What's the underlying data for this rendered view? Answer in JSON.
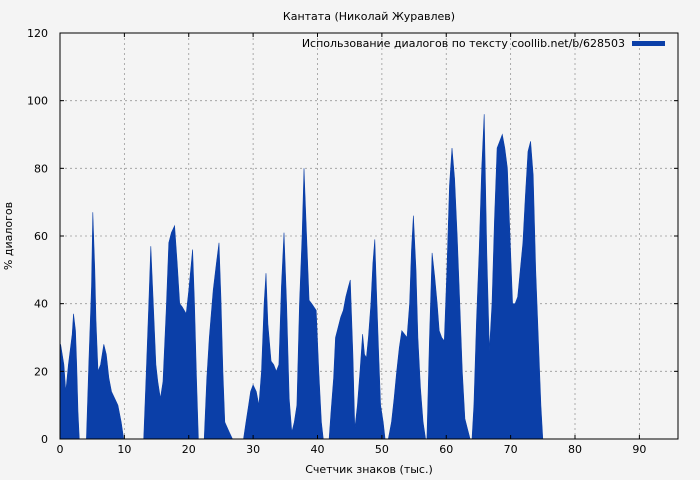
{
  "chart_data": {
    "type": "area",
    "title": "Кантата (Николай Журавлев)",
    "xlabel": "Счетчик знаков (тыс.)",
    "ylabel": "% диалогов",
    "xlim": [
      0,
      96
    ],
    "ylim": [
      0,
      120
    ],
    "xticks": [
      "0",
      "10",
      "20",
      "30",
      "40",
      "50",
      "60",
      "70",
      "80",
      "90"
    ],
    "yticks": [
      "0",
      "20",
      "40",
      "60",
      "80",
      "100",
      "120"
    ],
    "grid": true,
    "legend_position": "top-right",
    "colors": {
      "series": "#0b3fa8",
      "background": "#f4f4f4",
      "grid": "#999999"
    },
    "series": [
      {
        "name": "Использование диалогов по тексту coollib.net/b/628503",
        "points": [
          [
            0.0,
            0
          ],
          [
            0.1,
            28
          ],
          [
            0.6,
            22
          ],
          [
            0.9,
            14
          ],
          [
            1.3,
            22
          ],
          [
            1.9,
            31
          ],
          [
            2.1,
            37
          ],
          [
            2.4,
            32
          ],
          [
            2.6,
            22
          ],
          [
            2.8,
            8
          ],
          [
            3.0,
            0
          ],
          [
            4.1,
            0
          ],
          [
            4.5,
            24
          ],
          [
            4.9,
            45
          ],
          [
            5.1,
            67
          ],
          [
            5.4,
            50
          ],
          [
            5.6,
            35
          ],
          [
            5.9,
            20
          ],
          [
            6.3,
            22
          ],
          [
            6.8,
            28
          ],
          [
            7.2,
            25
          ],
          [
            7.6,
            18
          ],
          [
            8.0,
            14
          ],
          [
            8.5,
            12
          ],
          [
            9.0,
            10
          ],
          [
            9.5,
            5
          ],
          [
            9.9,
            0
          ],
          [
            13.0,
            0
          ],
          [
            13.4,
            20
          ],
          [
            13.8,
            40
          ],
          [
            14.1,
            57
          ],
          [
            14.5,
            40
          ],
          [
            14.9,
            22
          ],
          [
            15.2,
            17
          ],
          [
            15.6,
            12
          ],
          [
            16.0,
            17
          ],
          [
            16.5,
            38
          ],
          [
            16.9,
            58
          ],
          [
            17.3,
            61
          ],
          [
            17.8,
            63
          ],
          [
            18.2,
            52
          ],
          [
            18.6,
            40
          ],
          [
            19.0,
            39
          ],
          [
            19.6,
            37
          ],
          [
            20.0,
            44
          ],
          [
            20.6,
            56
          ],
          [
            20.9,
            40
          ],
          [
            21.2,
            18
          ],
          [
            21.5,
            0
          ],
          [
            22.4,
            0
          ],
          [
            22.8,
            18
          ],
          [
            23.2,
            30
          ],
          [
            23.8,
            44
          ],
          [
            24.3,
            52
          ],
          [
            24.7,
            58
          ],
          [
            25.0,
            42
          ],
          [
            25.3,
            20
          ],
          [
            25.6,
            5
          ],
          [
            26.3,
            2
          ],
          [
            26.8,
            0
          ],
          [
            28.5,
            0
          ],
          [
            28.9,
            5
          ],
          [
            29.3,
            10
          ],
          [
            29.6,
            14
          ],
          [
            30.0,
            16
          ],
          [
            30.5,
            14
          ],
          [
            30.9,
            10
          ],
          [
            31.3,
            20
          ],
          [
            31.7,
            40
          ],
          [
            32.0,
            49
          ],
          [
            32.3,
            34
          ],
          [
            32.8,
            23
          ],
          [
            33.2,
            22
          ],
          [
            33.6,
            20
          ],
          [
            34.0,
            22
          ],
          [
            34.4,
            45
          ],
          [
            34.8,
            61
          ],
          [
            35.2,
            40
          ],
          [
            35.6,
            12
          ],
          [
            36.0,
            2
          ],
          [
            36.4,
            5
          ],
          [
            36.8,
            10
          ],
          [
            37.2,
            40
          ],
          [
            37.6,
            60
          ],
          [
            37.9,
            80
          ],
          [
            38.3,
            60
          ],
          [
            38.7,
            41
          ],
          [
            39.1,
            40
          ],
          [
            39.8,
            38
          ],
          [
            40.2,
            20
          ],
          [
            40.6,
            5
          ],
          [
            40.9,
            0
          ],
          [
            41.8,
            0
          ],
          [
            42.1,
            8
          ],
          [
            42.5,
            18
          ],
          [
            42.8,
            30
          ],
          [
            43.2,
            33
          ],
          [
            43.6,
            36
          ],
          [
            44.0,
            38
          ],
          [
            44.4,
            42
          ],
          [
            44.8,
            45
          ],
          [
            45.1,
            47
          ],
          [
            45.5,
            25
          ],
          [
            45.8,
            3
          ],
          [
            46.2,
            10
          ],
          [
            46.6,
            20
          ],
          [
            47.0,
            31
          ],
          [
            47.3,
            25
          ],
          [
            47.6,
            24
          ],
          [
            47.9,
            30
          ],
          [
            48.3,
            40
          ],
          [
            48.6,
            52
          ],
          [
            48.9,
            59
          ],
          [
            49.2,
            42
          ],
          [
            49.5,
            25
          ],
          [
            49.8,
            10
          ],
          [
            50.2,
            5
          ],
          [
            50.5,
            0
          ],
          [
            51.0,
            0
          ],
          [
            51.5,
            5
          ],
          [
            51.9,
            12
          ],
          [
            52.3,
            20
          ],
          [
            52.7,
            27
          ],
          [
            53.1,
            32
          ],
          [
            53.5,
            31
          ],
          [
            53.9,
            30
          ],
          [
            54.3,
            40
          ],
          [
            54.6,
            56
          ],
          [
            54.9,
            66
          ],
          [
            55.3,
            50
          ],
          [
            55.6,
            30
          ],
          [
            56.0,
            15
          ],
          [
            56.4,
            5
          ],
          [
            56.8,
            0
          ],
          [
            57.0,
            0
          ],
          [
            57.4,
            30
          ],
          [
            57.8,
            55
          ],
          [
            58.2,
            48
          ],
          [
            58.6,
            40
          ],
          [
            58.9,
            32
          ],
          [
            59.3,
            30
          ],
          [
            59.7,
            29
          ],
          [
            60.1,
            50
          ],
          [
            60.5,
            75
          ],
          [
            60.9,
            86
          ],
          [
            61.3,
            77
          ],
          [
            61.7,
            60
          ],
          [
            62.1,
            40
          ],
          [
            62.5,
            20
          ],
          [
            62.9,
            6
          ],
          [
            63.3,
            3
          ],
          [
            63.7,
            0
          ],
          [
            64.0,
            0
          ],
          [
            64.3,
            10
          ],
          [
            64.7,
            35
          ],
          [
            65.1,
            55
          ],
          [
            65.5,
            80
          ],
          [
            65.9,
            96
          ],
          [
            66.3,
            55
          ],
          [
            66.7,
            26
          ],
          [
            67.1,
            40
          ],
          [
            67.5,
            65
          ],
          [
            67.9,
            86
          ],
          [
            68.3,
            88
          ],
          [
            68.7,
            90
          ],
          [
            69.1,
            86
          ],
          [
            69.5,
            80
          ],
          [
            69.9,
            60
          ],
          [
            70.3,
            40
          ],
          [
            70.7,
            40
          ],
          [
            71.1,
            42
          ],
          [
            71.5,
            50
          ],
          [
            71.9,
            58
          ],
          [
            72.3,
            72
          ],
          [
            72.7,
            85
          ],
          [
            73.1,
            88
          ],
          [
            73.5,
            78
          ],
          [
            73.9,
            50
          ],
          [
            74.3,
            30
          ],
          [
            74.7,
            10
          ],
          [
            75.0,
            0
          ]
        ]
      }
    ]
  }
}
